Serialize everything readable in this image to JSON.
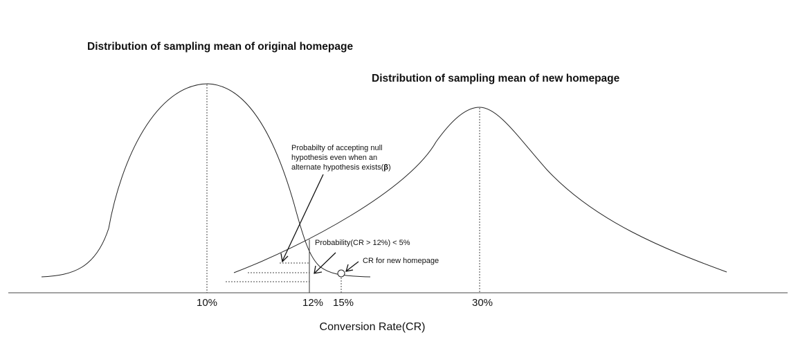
{
  "titles": {
    "original": "Distribution of sampling mean of original homepage",
    "new": "Distribution of sampling mean of new homepage"
  },
  "annotations": {
    "beta_line1": "Probabilty of accepting null",
    "beta_line2": "hypothesis even when an",
    "beta_line3_prefix": "alternate hypothesis exists(",
    "beta_symbol": "β",
    "beta_line3_suffix": ")",
    "alpha": "Probability(CR > 12%) < 5%",
    "new_cr": "CR for new homepage"
  },
  "axis": {
    "ticks": [
      "10%",
      "12%",
      "15%",
      "30%"
    ],
    "xlabel": "Conversion Rate(CR)"
  }
}
